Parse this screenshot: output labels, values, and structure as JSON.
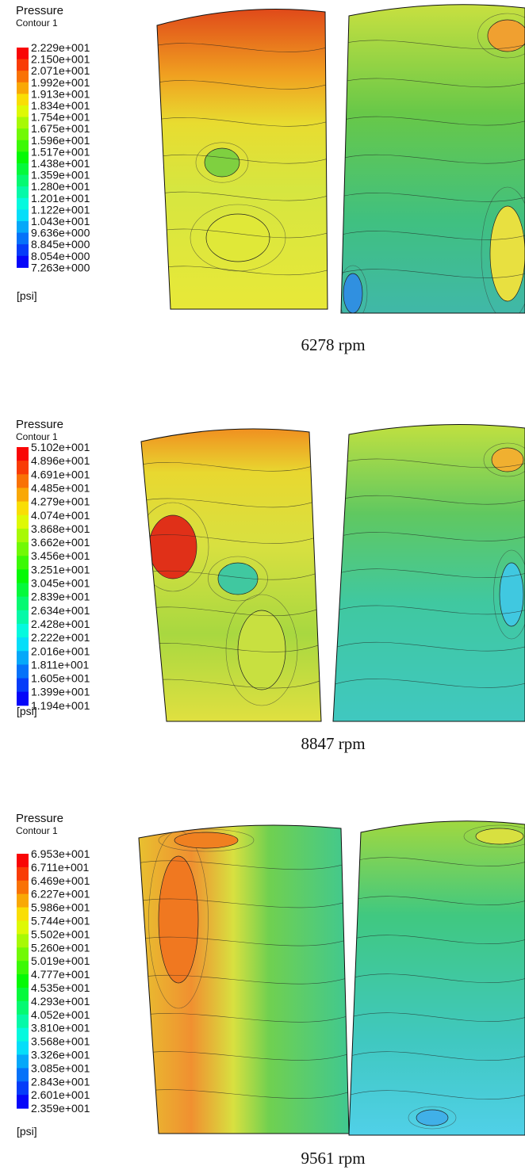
{
  "panels": [
    {
      "title": "Pressure",
      "subtitle": "Contour 1",
      "levels": [
        "2.229e+001",
        "2.150e+001",
        "2.071e+001",
        "1.992e+001",
        "1.913e+001",
        "1.834e+001",
        "1.754e+001",
        "1.675e+001",
        "1.596e+001",
        "1.517e+001",
        "1.438e+001",
        "1.359e+001",
        "1.280e+001",
        "1.201e+001",
        "1.122e+001",
        "1.043e+001",
        "9.636e+000",
        "8.845e+000",
        "8.054e+000",
        "7.263e+000"
      ],
      "unit": "[psi]",
      "caption": "6278 rpm"
    },
    {
      "title": "Pressure",
      "subtitle": "Contour 1",
      "levels": [
        "5.102e+001",
        "4.896e+001",
        "4.691e+001",
        "4.485e+001",
        "4.279e+001",
        "4.074e+001",
        "3.868e+001",
        "3.662e+001",
        "3.456e+001",
        "3.251e+001",
        "3.045e+001",
        "2.839e+001",
        "2.634e+001",
        "2.428e+001",
        "2.222e+001",
        "2.016e+001",
        "1.811e+001",
        "1.605e+001",
        "1.399e+001",
        "1.194e+001"
      ],
      "unit": "[psi]",
      "caption": "8847 rpm"
    },
    {
      "title": "Pressure",
      "subtitle": "Contour 1",
      "levels": [
        "6.953e+001",
        "6.711e+001",
        "6.469e+001",
        "6.227e+001",
        "5.986e+001",
        "5.744e+001",
        "5.502e+001",
        "5.260e+001",
        "5.019e+001",
        "4.777e+001",
        "4.535e+001",
        "4.293e+001",
        "4.052e+001",
        "3.810e+001",
        "3.568e+001",
        "3.326e+001",
        "3.085e+001",
        "2.843e+001",
        "2.601e+001",
        "2.359e+001"
      ],
      "unit": "[psi]",
      "caption": "9561 rpm"
    }
  ]
}
